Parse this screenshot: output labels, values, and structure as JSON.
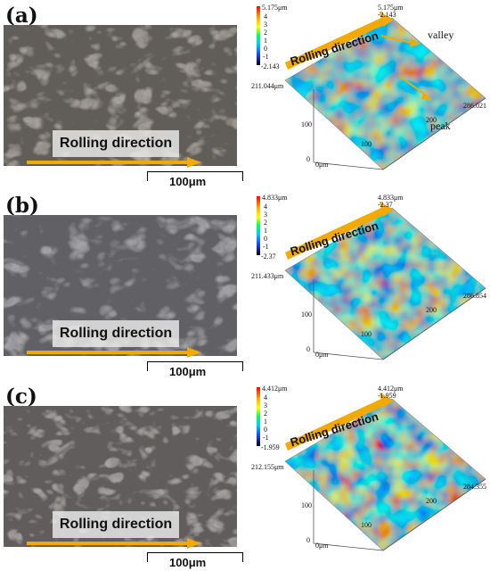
{
  "panels": [
    {
      "label": "(a)",
      "rolling_label": "Rolling direction",
      "scale": "100μm",
      "colorbar_ticks": [
        "5.175μm",
        "4",
        "3",
        "2",
        "1",
        "0",
        "-1",
        "-2.143"
      ],
      "corner_max": "5.175μm",
      "corner_min": "-2.143",
      "y_max": "211.044μm",
      "x_max": "286.021",
      "axis_100_a": "100",
      "axis_200": "200",
      "axis_100_b": "100",
      "origin": "0μm",
      "origin_y": "0",
      "valley": "valley",
      "peak": "peak"
    },
    {
      "label": "(b)",
      "rolling_label": "Rolling direction",
      "scale": "100μm",
      "colorbar_ticks": [
        "4.833μm",
        "4",
        "3",
        "2",
        "1",
        "0",
        "-1",
        "-2.37"
      ],
      "corner_max": "4.833μm",
      "corner_min": "-2.37",
      "y_max": "211.433μm",
      "x_max": "286.854",
      "axis_100_a": "100",
      "axis_200": "200",
      "axis_100_b": "100",
      "origin": "0μm",
      "origin_y": "0"
    },
    {
      "label": "(c)",
      "rolling_label": "Rolling direction",
      "scale": "100μm",
      "colorbar_ticks": [
        "4.412μm",
        "4",
        "3",
        "2",
        "1",
        "0",
        "-1",
        "-1.959"
      ],
      "corner_max": "4.412μm",
      "corner_min": "-1.959",
      "y_max": "212.155μm",
      "x_max": "284.355",
      "axis_100_a": "100",
      "axis_200": "200",
      "axis_100_b": "100",
      "origin": "0μm",
      "origin_y": "0"
    }
  ],
  "colors": {
    "arrow": "#f2a900",
    "colorbar": [
      "#ff0000",
      "#ffb000",
      "#ffff00",
      "#00ff60",
      "#00c8ff",
      "#2040ff",
      "#000000"
    ]
  }
}
